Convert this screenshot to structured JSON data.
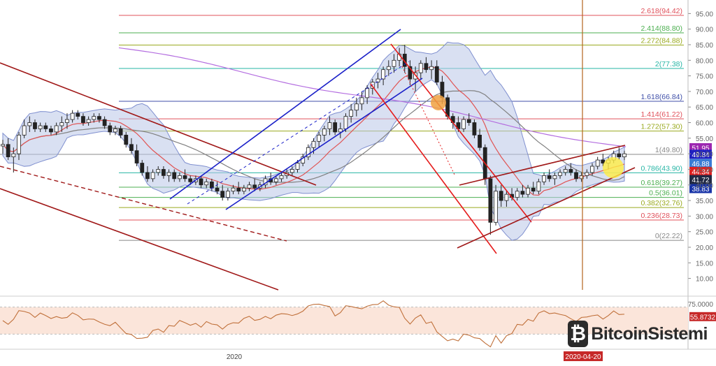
{
  "logo": {
    "mark": "₿",
    "text": "BitcoinSistemi"
  },
  "chart_data": [
    {
      "type": "candlestick",
      "title": "",
      "x_label_visible": "2020",
      "date_marker": "2020-04-20",
      "y_axis": {
        "ticks": [
          "95.00",
          "90.00",
          "85.00",
          "80.00",
          "75.00",
          "70.00",
          "65.00",
          "60.00",
          "55.00",
          "50.00",
          "45.00",
          "40.00",
          "35.00",
          "30.00",
          "25.00",
          "20.00",
          "15.00",
          "10.00"
        ],
        "ylim": [
          7,
          98
        ],
        "scale": "linear"
      },
      "fibonacci_levels": [
        {
          "label": "2.618(94.42)",
          "value": 94.42,
          "color": "#e0505a"
        },
        {
          "label": "2.414(88.80)",
          "value": 88.8,
          "color": "#4caf50"
        },
        {
          "label": "2.272(84.88)",
          "value": 84.88,
          "color": "#9aaa1f"
        },
        {
          "label": "2(77.38)",
          "value": 77.38,
          "color": "#26b5a5"
        },
        {
          "label": "1.618(66.84)",
          "value": 66.84,
          "color": "#3f4fa8"
        },
        {
          "label": "1.414(61.22)",
          "value": 61.22,
          "color": "#e0505a"
        },
        {
          "label": "1.272(57.30)",
          "value": 57.3,
          "color": "#9aaa1f"
        },
        {
          "label": "1(49.80)",
          "value": 49.8,
          "color": "#888888"
        },
        {
          "label": "0.786(43.90)",
          "value": 43.9,
          "color": "#26b5a5"
        },
        {
          "label": "0.618(39.27)",
          "value": 39.27,
          "color": "#4caf50"
        },
        {
          "label": "0.5(36.01)",
          "value": 36.01,
          "color": "#4caf50"
        },
        {
          "label": "0.382(32.76)",
          "value": 32.76,
          "color": "#9aaa1f"
        },
        {
          "label": "0.236(28.73)",
          "value": 28.73,
          "color": "#e0505a"
        },
        {
          "label": "0(22.22)",
          "value": 22.22,
          "color": "#888888"
        }
      ],
      "price_badges": [
        {
          "text": "51.95",
          "value": 51.95,
          "color": "#9c27b0"
        },
        {
          "text": "49.84",
          "value": 49.84,
          "color": "#2020c0"
        },
        {
          "text": "46.88",
          "value": 46.88,
          "color": "#3a7bd5"
        },
        {
          "text": "44.34",
          "value": 44.34,
          "color": "#e02020"
        },
        {
          "text": "41.72",
          "value": 41.72,
          "color": "#222a44"
        },
        {
          "text": "38.83",
          "value": 38.83,
          "color": "#1a35a8"
        }
      ],
      "colors": {
        "bollinger_fill": "#b9c7e8",
        "bollinger_line": "#7f8fcf",
        "ma_fast": "#e05555",
        "ma_slow": "#808080",
        "ma_long": "#b46ee0",
        "candle": "#222222",
        "channel_blue": "#1a20c8",
        "channel_red": "#e51c1c",
        "channel_dark": "#a01818",
        "vertical_marker": "#b5651d",
        "highlight_orange": "#f0a040",
        "highlight_yellow": "#ffee44"
      },
      "series": [
        {
          "kind": "candles",
          "values": [
            [
              52.5,
              54.5,
              50,
              53
            ],
            [
              53,
              55,
              48,
              49
            ],
            [
              49,
              52,
              44,
              50
            ],
            [
              50,
              57,
              48,
              56
            ],
            [
              56,
              61,
              55,
              59
            ],
            [
              59,
              62,
              57,
              60
            ],
            [
              60,
              61,
              57,
              58
            ],
            [
              58,
              60,
              57,
              59
            ],
            [
              59,
              60,
              57,
              58
            ],
            [
              58,
              59,
              56,
              57
            ],
            [
              57,
              60,
              56,
              59
            ],
            [
              59,
              62,
              57,
              60
            ],
            [
              60,
              63,
              58,
              61
            ],
            [
              61,
              64,
              60,
              63
            ],
            [
              63,
              64,
              61,
              62
            ],
            [
              62,
              63,
              59,
              60
            ],
            [
              60,
              62,
              59,
              61
            ],
            [
              61,
              63,
              60,
              62
            ],
            [
              62,
              63,
              60,
              61
            ],
            [
              61,
              62,
              58,
              59
            ],
            [
              59,
              60,
              56,
              57
            ],
            [
              57,
              59,
              56,
              58
            ],
            [
              58,
              59,
              55,
              56
            ],
            [
              56,
              57,
              52,
              53
            ],
            [
              53,
              55,
              50,
              51
            ],
            [
              51,
              53,
              46,
              47
            ],
            [
              47,
              48,
              43,
              44
            ],
            [
              44,
              46,
              41,
              42
            ],
            [
              42,
              45,
              41,
              44
            ],
            [
              44,
              46,
              43,
              45
            ],
            [
              45,
              46,
              42,
              43
            ],
            [
              43,
              45,
              41,
              44
            ],
            [
              44,
              45,
              41,
              42
            ],
            [
              42,
              44,
              41,
              43
            ],
            [
              43,
              45,
              41,
              42
            ],
            [
              42,
              43,
              40,
              41
            ],
            [
              41,
              43,
              40,
              42
            ],
            [
              42,
              43,
              39,
              40
            ],
            [
              40,
              42,
              39,
              41
            ],
            [
              41,
              42,
              38,
              39
            ],
            [
              39,
              41,
              37,
              38
            ],
            [
              38,
              40,
              35,
              36
            ],
            [
              36,
              39,
              35,
              38
            ],
            [
              38,
              40,
              37,
              39
            ],
            [
              39,
              41,
              37,
              38
            ],
            [
              38,
              40,
              37,
              39
            ],
            [
              39,
              41,
              38,
              40
            ],
            [
              40,
              42,
              38,
              39
            ],
            [
              39,
              41,
              38,
              40
            ],
            [
              40,
              43,
              39,
              42
            ],
            [
              42,
              44,
              40,
              41
            ],
            [
              41,
              43,
              40,
              42
            ],
            [
              42,
              44,
              41,
              43
            ],
            [
              43,
              45,
              42,
              44
            ],
            [
              44,
              46,
              43,
              45
            ],
            [
              45,
              48,
              44,
              47
            ],
            [
              47,
              50,
              46,
              49
            ],
            [
              49,
              53,
              48,
              52
            ],
            [
              52,
              55,
              50,
              54
            ],
            [
              54,
              57,
              52,
              56
            ],
            [
              56,
              59,
              54,
              58
            ],
            [
              58,
              62,
              56,
              60
            ],
            [
              60,
              61,
              56,
              57
            ],
            [
              57,
              60,
              55,
              58
            ],
            [
              58,
              63,
              57,
              62
            ],
            [
              62,
              66,
              60,
              64
            ],
            [
              64,
              68,
              62,
              66
            ],
            [
              66,
              70,
              64,
              68
            ],
            [
              68,
              72,
              66,
              71
            ],
            [
              71,
              74,
              69,
              73
            ],
            [
              73,
              76,
              71,
              74
            ],
            [
              74,
              78,
              72,
              77
            ],
            [
              77,
              80,
              75,
              78
            ],
            [
              78,
              82,
              76,
              80
            ],
            [
              80,
              84,
              78,
              82
            ],
            [
              82,
              85,
              76,
              78
            ],
            [
              78,
              80,
              72,
              74
            ],
            [
              74,
              78,
              70,
              76
            ],
            [
              76,
              80,
              74,
              79
            ],
            [
              79,
              81,
              76,
              77
            ],
            [
              77,
              80,
              74,
              78
            ],
            [
              78,
              80,
              72,
              73
            ],
            [
              73,
              75,
              66,
              68
            ],
            [
              68,
              69,
              61,
              62
            ],
            [
              62,
              63,
              58,
              60
            ],
            [
              60,
              62,
              57,
              58
            ],
            [
              58,
              62,
              57,
              61
            ],
            [
              61,
              63,
              59,
              60
            ],
            [
              60,
              61,
              55,
              56
            ],
            [
              56,
              58,
              51,
              52
            ],
            [
              52,
              53,
              40,
              42
            ],
            [
              42,
              43,
              24,
              28
            ],
            [
              28,
              40,
              27,
              38
            ],
            [
              38,
              40,
              33,
              35
            ],
            [
              35,
              38,
              33,
              37
            ],
            [
              37,
              39,
              35,
              36
            ],
            [
              36,
              39,
              35,
              38
            ],
            [
              38,
              40,
              36,
              37
            ],
            [
              37,
              40,
              36,
              39
            ],
            [
              39,
              41,
              37,
              38
            ],
            [
              38,
              42,
              37,
              41
            ],
            [
              41,
              44,
              40,
              43
            ],
            [
              43,
              45,
              41,
              42
            ],
            [
              42,
              44,
              40,
              43
            ],
            [
              43,
              45,
              42,
              44
            ],
            [
              44,
              46,
              43,
              45
            ],
            [
              45,
              47,
              43,
              44
            ],
            [
              44,
              45,
              41,
              42
            ],
            [
              42,
              44,
              41,
              43
            ],
            [
              43,
              45,
              42,
              44
            ],
            [
              44,
              47,
              43,
              46
            ],
            [
              46,
              49,
              45,
              48
            ],
            [
              48,
              50,
              46,
              47
            ],
            [
              47,
              49,
              45,
              48
            ],
            [
              48,
              51,
              47,
              50
            ],
            [
              50,
              52,
              48,
              49
            ],
            [
              49,
              51,
              48,
              50
            ]
          ]
        },
        {
          "name": "",
          "kind": "rsi",
          "levels": [
            75,
            55.8732
          ],
          "labels": [
            "75.0000",
            "55.8732"
          ]
        }
      ]
    }
  ]
}
